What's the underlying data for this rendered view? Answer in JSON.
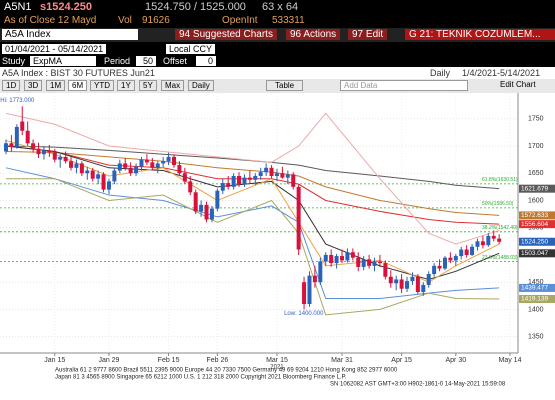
{
  "header": {
    "ticker": "A5N1",
    "last": "s1524.250",
    "bid_ask": "1524.750 / 1525.000",
    "size": "63 x 64",
    "as_of": "As of Close 12 Mayd",
    "vol_label": "Vol",
    "vol": "91626",
    "oi_label": "OpenInt",
    "oi": "533311"
  },
  "toolbar": {
    "security": "A5A Index",
    "suggested": "94 Suggested Charts",
    "actions": "96 Actions",
    "edit": "97 Edit",
    "page": "G 21: TEKNIK COZUMLEM..."
  },
  "settings": {
    "date_range": "01/04/2021 - 05/14/2021",
    "currency": "Local CCY",
    "study_label": "Study",
    "study": "ExpMA",
    "period_label": "Period",
    "period": "50",
    "offset_label": "Offset",
    "offset": "0"
  },
  "info": {
    "name": "A5A Index : BIST 30 FUTURES  Jun21",
    "freq": "Daily",
    "range": "1/4/2021-5/14/2021"
  },
  "buttons": [
    "1D",
    "3D",
    "1M",
    "6M",
    "YTD",
    "1Y",
    "5Y",
    "Max",
    "Daily"
  ],
  "table": "Table",
  "add_data": "Add Data",
  "edit_chart": "Edit Chart",
  "footer": [
    "Australia 61 2 9777 8600 Brazil 5511 2395 9000 Europe 44 20 7330 7500 Germany 49 69 9204 1210 Hong Kong 852 2977 6000",
    "Japan 81 3 4565 8900       Singapore 65 6212 1000       U.S. 1 212 318 2000       Copyright 2021 Bloomberg Finance L.P.",
    "SN 1062082 AST  GMT+3:00 H902-1861-0 14-May-2021 15:59:08"
  ],
  "chart_data": {
    "type": "candlestick",
    "up_color": "#2a62b8",
    "down_color": "#d8103c",
    "grid": true,
    "categories": [
      "Jan 4",
      "Jan 5",
      "Jan 6",
      "Jan 7",
      "Jan 8",
      "Jan 11",
      "Jan 12",
      "Jan 13",
      "Jan 14",
      "Jan 15",
      "Jan 18",
      "Jan 19",
      "Jan 20",
      "Jan 21",
      "Jan 22",
      "Jan 25",
      "Jan 26",
      "Jan 27",
      "Jan 28",
      "Jan 29",
      "Feb 1",
      "Feb 2",
      "Feb 3",
      "Feb 4",
      "Feb 5",
      "Feb 8",
      "Feb 9",
      "Feb 10",
      "Feb 11",
      "Feb 12",
      "Feb 15",
      "Feb 16",
      "Feb 17",
      "Feb 18",
      "Feb 19",
      "Feb 22",
      "Feb 23",
      "Feb 24",
      "Feb 25",
      "Feb 26",
      "Mar 1",
      "Mar 2",
      "Mar 3",
      "Mar 4",
      "Mar 5",
      "Mar 8",
      "Mar 9",
      "Mar 10",
      "Mar 11",
      "Mar 12",
      "Mar 15",
      "Mar 16",
      "Mar 17",
      "Mar 18",
      "Mar 19",
      "Mar 22",
      "Mar 23",
      "Mar 24",
      "Mar 25",
      "Mar 26",
      "Mar 29",
      "Mar 30",
      "Mar 31",
      "Apr 1",
      "Apr 2",
      "Apr 5",
      "Apr 6",
      "Apr 7",
      "Apr 8",
      "Apr 9",
      "Apr 12",
      "Apr 13",
      "Apr 14",
      "Apr 15",
      "Apr 16",
      "Apr 19",
      "Apr 20",
      "Apr 21",
      "Apr 22",
      "Apr 26",
      "Apr 27",
      "Apr 28",
      "Apr 29",
      "Apr 30",
      "May 3",
      "May 4",
      "May 5",
      "May 6",
      "May 7",
      "May 10",
      "May 11",
      "May 12",
      "May 13",
      "May 14"
    ],
    "ohlc": [
      [
        1690,
        1712,
        1685,
        1705
      ],
      [
        1705,
        1720,
        1690,
        1698
      ],
      [
        1698,
        1740,
        1695,
        1735
      ],
      [
        1745,
        1773,
        1720,
        1728
      ],
      [
        1728,
        1745,
        1700,
        1705
      ],
      [
        1705,
        1712,
        1688,
        1695
      ],
      [
        1695,
        1706,
        1678,
        1685
      ],
      [
        1685,
        1700,
        1675,
        1692
      ],
      [
        1692,
        1702,
        1680,
        1688
      ],
      [
        1688,
        1695,
        1670,
        1675
      ],
      [
        1675,
        1685,
        1660,
        1680
      ],
      [
        1680,
        1690,
        1668,
        1672
      ],
      [
        1672,
        1680,
        1655,
        1660
      ],
      [
        1660,
        1675,
        1650,
        1668
      ],
      [
        1668,
        1672,
        1645,
        1650
      ],
      [
        1650,
        1662,
        1638,
        1655
      ],
      [
        1655,
        1660,
        1635,
        1640
      ],
      [
        1640,
        1655,
        1630,
        1648
      ],
      [
        1648,
        1652,
        1615,
        1620
      ],
      [
        1620,
        1640,
        1612,
        1635
      ],
      [
        1635,
        1660,
        1630,
        1655
      ],
      [
        1655,
        1675,
        1650,
        1668
      ],
      [
        1668,
        1678,
        1655,
        1660
      ],
      [
        1660,
        1670,
        1645,
        1650
      ],
      [
        1650,
        1668,
        1645,
        1662
      ],
      [
        1662,
        1680,
        1655,
        1675
      ],
      [
        1675,
        1685,
        1665,
        1670
      ],
      [
        1670,
        1678,
        1655,
        1660
      ],
      [
        1660,
        1672,
        1650,
        1668
      ],
      [
        1668,
        1680,
        1660,
        1672
      ],
      [
        1672,
        1688,
        1665,
        1680
      ],
      [
        1680,
        1685,
        1660,
        1665
      ],
      [
        1665,
        1672,
        1645,
        1650
      ],
      [
        1650,
        1660,
        1630,
        1635
      ],
      [
        1635,
        1645,
        1610,
        1615
      ],
      [
        1615,
        1620,
        1575,
        1580
      ],
      [
        1580,
        1600,
        1570,
        1592
      ],
      [
        1592,
        1598,
        1560,
        1565
      ],
      [
        1565,
        1590,
        1560,
        1585
      ],
      [
        1585,
        1622,
        1580,
        1618
      ],
      [
        1618,
        1640,
        1612,
        1632
      ],
      [
        1632,
        1645,
        1620,
        1625
      ],
      [
        1625,
        1650,
        1620,
        1645
      ],
      [
        1645,
        1652,
        1625,
        1630
      ],
      [
        1630,
        1648,
        1625,
        1642
      ],
      [
        1642,
        1655,
        1632,
        1638
      ],
      [
        1638,
        1650,
        1628,
        1645
      ],
      [
        1645,
        1660,
        1638,
        1652
      ],
      [
        1652,
        1668,
        1645,
        1660
      ],
      [
        1660,
        1665,
        1640,
        1645
      ],
      [
        1645,
        1658,
        1635,
        1650
      ],
      [
        1650,
        1662,
        1640,
        1642
      ],
      [
        1642,
        1655,
        1630,
        1648
      ],
      [
        1648,
        1652,
        1620,
        1625
      ],
      [
        1625,
        1630,
        1500,
        1510
      ],
      [
        1450,
        1460,
        1400,
        1410
      ],
      [
        1410,
        1470,
        1405,
        1462
      ],
      [
        1462,
        1480,
        1440,
        1450
      ],
      [
        1450,
        1495,
        1445,
        1488
      ],
      [
        1488,
        1505,
        1480,
        1500
      ],
      [
        1500,
        1510,
        1478,
        1485
      ],
      [
        1485,
        1502,
        1475,
        1498
      ],
      [
        1498,
        1510,
        1485,
        1490
      ],
      [
        1490,
        1512,
        1486,
        1505
      ],
      [
        1505,
        1512,
        1490,
        1495
      ],
      [
        1495,
        1505,
        1470,
        1478
      ],
      [
        1478,
        1498,
        1472,
        1492
      ],
      [
        1492,
        1500,
        1475,
        1480
      ],
      [
        1480,
        1495,
        1470,
        1488
      ],
      [
        1488,
        1500,
        1478,
        1485
      ],
      [
        1485,
        1490,
        1455,
        1460
      ],
      [
        1460,
        1472,
        1440,
        1448
      ],
      [
        1448,
        1462,
        1435,
        1455
      ],
      [
        1455,
        1465,
        1430,
        1438
      ],
      [
        1438,
        1460,
        1432,
        1452
      ],
      [
        1452,
        1468,
        1445,
        1460
      ],
      [
        1460,
        1465,
        1428,
        1432
      ],
      [
        1432,
        1450,
        1425,
        1445
      ],
      [
        1445,
        1470,
        1440,
        1465
      ],
      [
        1465,
        1485,
        1460,
        1480
      ],
      [
        1480,
        1492,
        1470,
        1475
      ],
      [
        1475,
        1498,
        1472,
        1495
      ],
      [
        1495,
        1505,
        1485,
        1490
      ],
      [
        1490,
        1502,
        1480,
        1498
      ],
      [
        1498,
        1515,
        1492,
        1510
      ],
      [
        1510,
        1518,
        1495,
        1500
      ],
      [
        1500,
        1520,
        1498,
        1515
      ],
      [
        1515,
        1530,
        1508,
        1525
      ],
      [
        1525,
        1535,
        1512,
        1518
      ],
      [
        1518,
        1540,
        1515,
        1535
      ],
      [
        1535,
        1545,
        1525,
        1530
      ],
      [
        1530,
        1538,
        1520,
        1524.25
      ],
      null,
      null
    ],
    "close_label": "1524.250",
    "series": [
      {
        "color": "#5a5a5a",
        "x": [
          "Jan 4",
          "Jan 15",
          "Jan 29",
          "Feb 12",
          "Feb 26",
          "Mar 12",
          "Mar 19",
          "Mar 26",
          "Apr 9",
          "Apr 22",
          "Apr 30",
          "May 12"
        ],
        "values": [
          1700,
          1698,
          1692,
          1685,
          1678,
          1670,
          1665,
          1655,
          1645,
          1635,
          1628,
          1621.679
        ]
      },
      {
        "color": "#c07a30",
        "x": [
          "Jan 4",
          "Jan 15",
          "Jan 29",
          "Feb 12",
          "Feb 26",
          "Mar 12",
          "Mar 19",
          "Mar 26",
          "Apr 9",
          "Apr 22",
          "Apr 30",
          "May 12"
        ],
        "values": [
          1690,
          1688,
          1680,
          1672,
          1660,
          1652,
          1645,
          1625,
          1600,
          1585,
          1578,
          1572.633
        ]
      },
      {
        "color": "#e03030",
        "x": [
          "Jan 4",
          "Jan 15",
          "Jan 29",
          "Feb 12",
          "Feb 26",
          "Mar 12",
          "Mar 19",
          "Mar 26",
          "Apr 9",
          "Apr 22",
          "Apr 30",
          "May 12"
        ],
        "values": [
          1700,
          1690,
          1665,
          1660,
          1640,
          1640,
          1630,
          1600,
          1580,
          1565,
          1560,
          1556.604
        ]
      },
      {
        "color": "#333333",
        "x": [
          "Jan 4",
          "Jan 15",
          "Jan 29",
          "Feb 12",
          "Feb 26",
          "Mar 12",
          "Mar 19",
          "Mar 26",
          "Apr 9",
          "Apr 22",
          "Apr 30",
          "May 12"
        ],
        "values": [
          1700,
          1690,
          1660,
          1655,
          1625,
          1635,
          1600,
          1520,
          1480,
          1455,
          1470,
          1503.047
        ]
      },
      {
        "color": "#f0a040",
        "x": [
          "Jan 4",
          "Jan 15",
          "Jan 29",
          "Feb 12",
          "Feb 26",
          "Mar 12",
          "Mar 19",
          "Mar 26",
          "Apr 9",
          "Apr 22",
          "Apr 30",
          "May 12"
        ],
        "values": [
          1710,
          1685,
          1645,
          1660,
          1600,
          1640,
          1560,
          1480,
          1490,
          1450,
          1480,
          1520
        ]
      },
      {
        "color": "#f0a8a8",
        "x": [
          "Jan 4",
          "Jan 15",
          "Jan 29",
          "Feb 12",
          "Feb 26",
          "Mar 12",
          "Mar 19",
          "Mar 26",
          "Apr 9",
          "Apr 22",
          "Apr 30",
          "May 12"
        ],
        "values": [
          1760,
          1740,
          1700,
          1690,
          1680,
          1670,
          1700,
          1760,
          1640,
          1540,
          1520,
          1545
        ]
      },
      {
        "color": "#5b8fd8",
        "x": [
          "Jan 4",
          "Jan 15",
          "Jan 29",
          "Feb 12",
          "Feb 26",
          "Mar 12",
          "Mar 19",
          "Mar 26",
          "Apr 9",
          "Apr 22",
          "Apr 30",
          "May 12"
        ],
        "values": [
          1660,
          1640,
          1610,
          1600,
          1570,
          1590,
          1560,
          1420,
          1420,
          1430,
          1435,
          1439.477
        ]
      },
      {
        "color": "#a8a860",
        "x": [
          "Jan 4",
          "Jan 15",
          "Jan 29",
          "Feb 12",
          "Feb 26",
          "Mar 12",
          "Mar 19",
          "Mar 26",
          "Apr 9",
          "Apr 22",
          "Apr 30",
          "May 12"
        ],
        "values": [
          1640,
          1640,
          1600,
          1610,
          1560,
          1600,
          1540,
          1390,
          1400,
          1430,
          1420,
          1419.139
        ]
      }
    ],
    "fib_levels": [
      {
        "value": 1630.51,
        "label": "61.8%(1630.51)"
      },
      {
        "value": 1586.5,
        "label": "50%(1586.50)"
      },
      {
        "value": 1542.49,
        "label": "38.2%(1542.49)"
      },
      {
        "value": 1488.03,
        "label": "23.6%(1488.03)"
      }
    ],
    "annotations": [
      {
        "text": "Hi: 1773.000",
        "at": "Jan 7",
        "value": 1773
      },
      {
        "text": "Low: 1400.000",
        "at": "Mar 22",
        "value": 1400
      }
    ],
    "ylim": [
      1320,
      1790
    ],
    "yticks": [
      1350,
      1400,
      1450,
      1500,
      1550,
      1600,
      1650,
      1700,
      1750
    ],
    "xticks": [
      "Jan 15",
      "Jan 29",
      "Feb 15",
      "Feb 26",
      "Mar 15",
      "Mar 31",
      "Apr 15",
      "Apr 30",
      "May 14"
    ],
    "year_label": "2021"
  }
}
